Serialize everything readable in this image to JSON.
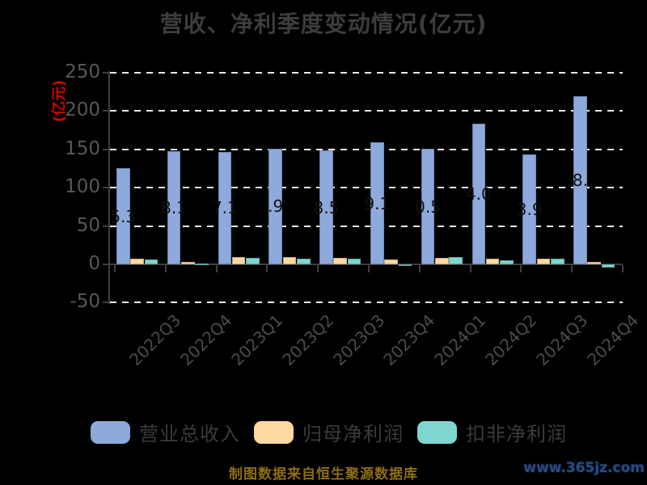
{
  "title": "营收、净利季度变动情况(亿元)",
  "y_axis_unit_label": "(亿元)",
  "footer_note": "制图数据来自恒生聚源数据库",
  "watermark": "www.365jz.com",
  "colors": {
    "background": "#000000",
    "title_text": "#3d3d3d",
    "axis": "#3f3f3f",
    "gridline": "#ececec",
    "y_tick_text": "#585858",
    "x_tick_text": "#4c4c4c",
    "bar_value_text": "#111111",
    "unit_label_red": "#d40000",
    "footer_gold": "#8f6d14",
    "watermark_blue": "#2a4a80",
    "series_blue": "#8ea9db",
    "series_orange": "#fcd9a1",
    "series_teal": "#7fd6d0"
  },
  "chart_data": {
    "type": "bar",
    "title": "营收、净利季度变动情况(亿元)",
    "categories": [
      "2022Q3",
      "2022Q4",
      "2023Q1",
      "2023Q2",
      "2023Q3",
      "2023Q4",
      "2024Q1",
      "2024Q2",
      "2024Q3",
      "2024Q4"
    ],
    "series": [
      {
        "name": "营业总收入",
        "color": "#8ea9db",
        "values": [
          125.3,
          148.1,
          147.1,
          150.9,
          148.5,
          159.1,
          150.5,
          184.0,
          143.9,
          218.9
        ],
        "visible_value_labels": [
          "5.3",
          "8.1",
          "7.1",
          ".9",
          "8.5",
          "9.1",
          "0.5",
          "4.0",
          "3.9",
          "8."
        ]
      },
      {
        "name": "归母净利润",
        "color": "#fcd9a1",
        "values": [
          7.5,
          2.8,
          9.0,
          9.0,
          8.0,
          6.0,
          8.0,
          7.5,
          7.8,
          3.2
        ]
      },
      {
        "name": "扣非净利润",
        "color": "#7fd6d0",
        "values": [
          6.8,
          1.5,
          8.2,
          7.8,
          7.8,
          -1.2,
          9.8,
          5.0,
          7.0,
          -4.5
        ]
      }
    ],
    "ylabel": "(亿元)",
    "yticks": [
      250,
      200,
      150,
      100,
      50,
      0,
      -50
    ],
    "grid_yticks": [
      250,
      200,
      150,
      100,
      50,
      -50
    ],
    "ylim": [
      -50,
      250
    ],
    "grid": "horizontal-dashed",
    "legend_position": "bottom"
  },
  "legend": {
    "items": [
      {
        "label": "营业总收入",
        "color": "#8ea9db"
      },
      {
        "label": "归母净利润",
        "color": "#fcd9a1"
      },
      {
        "label": "扣非净利润",
        "color": "#7fd6d0"
      }
    ]
  }
}
